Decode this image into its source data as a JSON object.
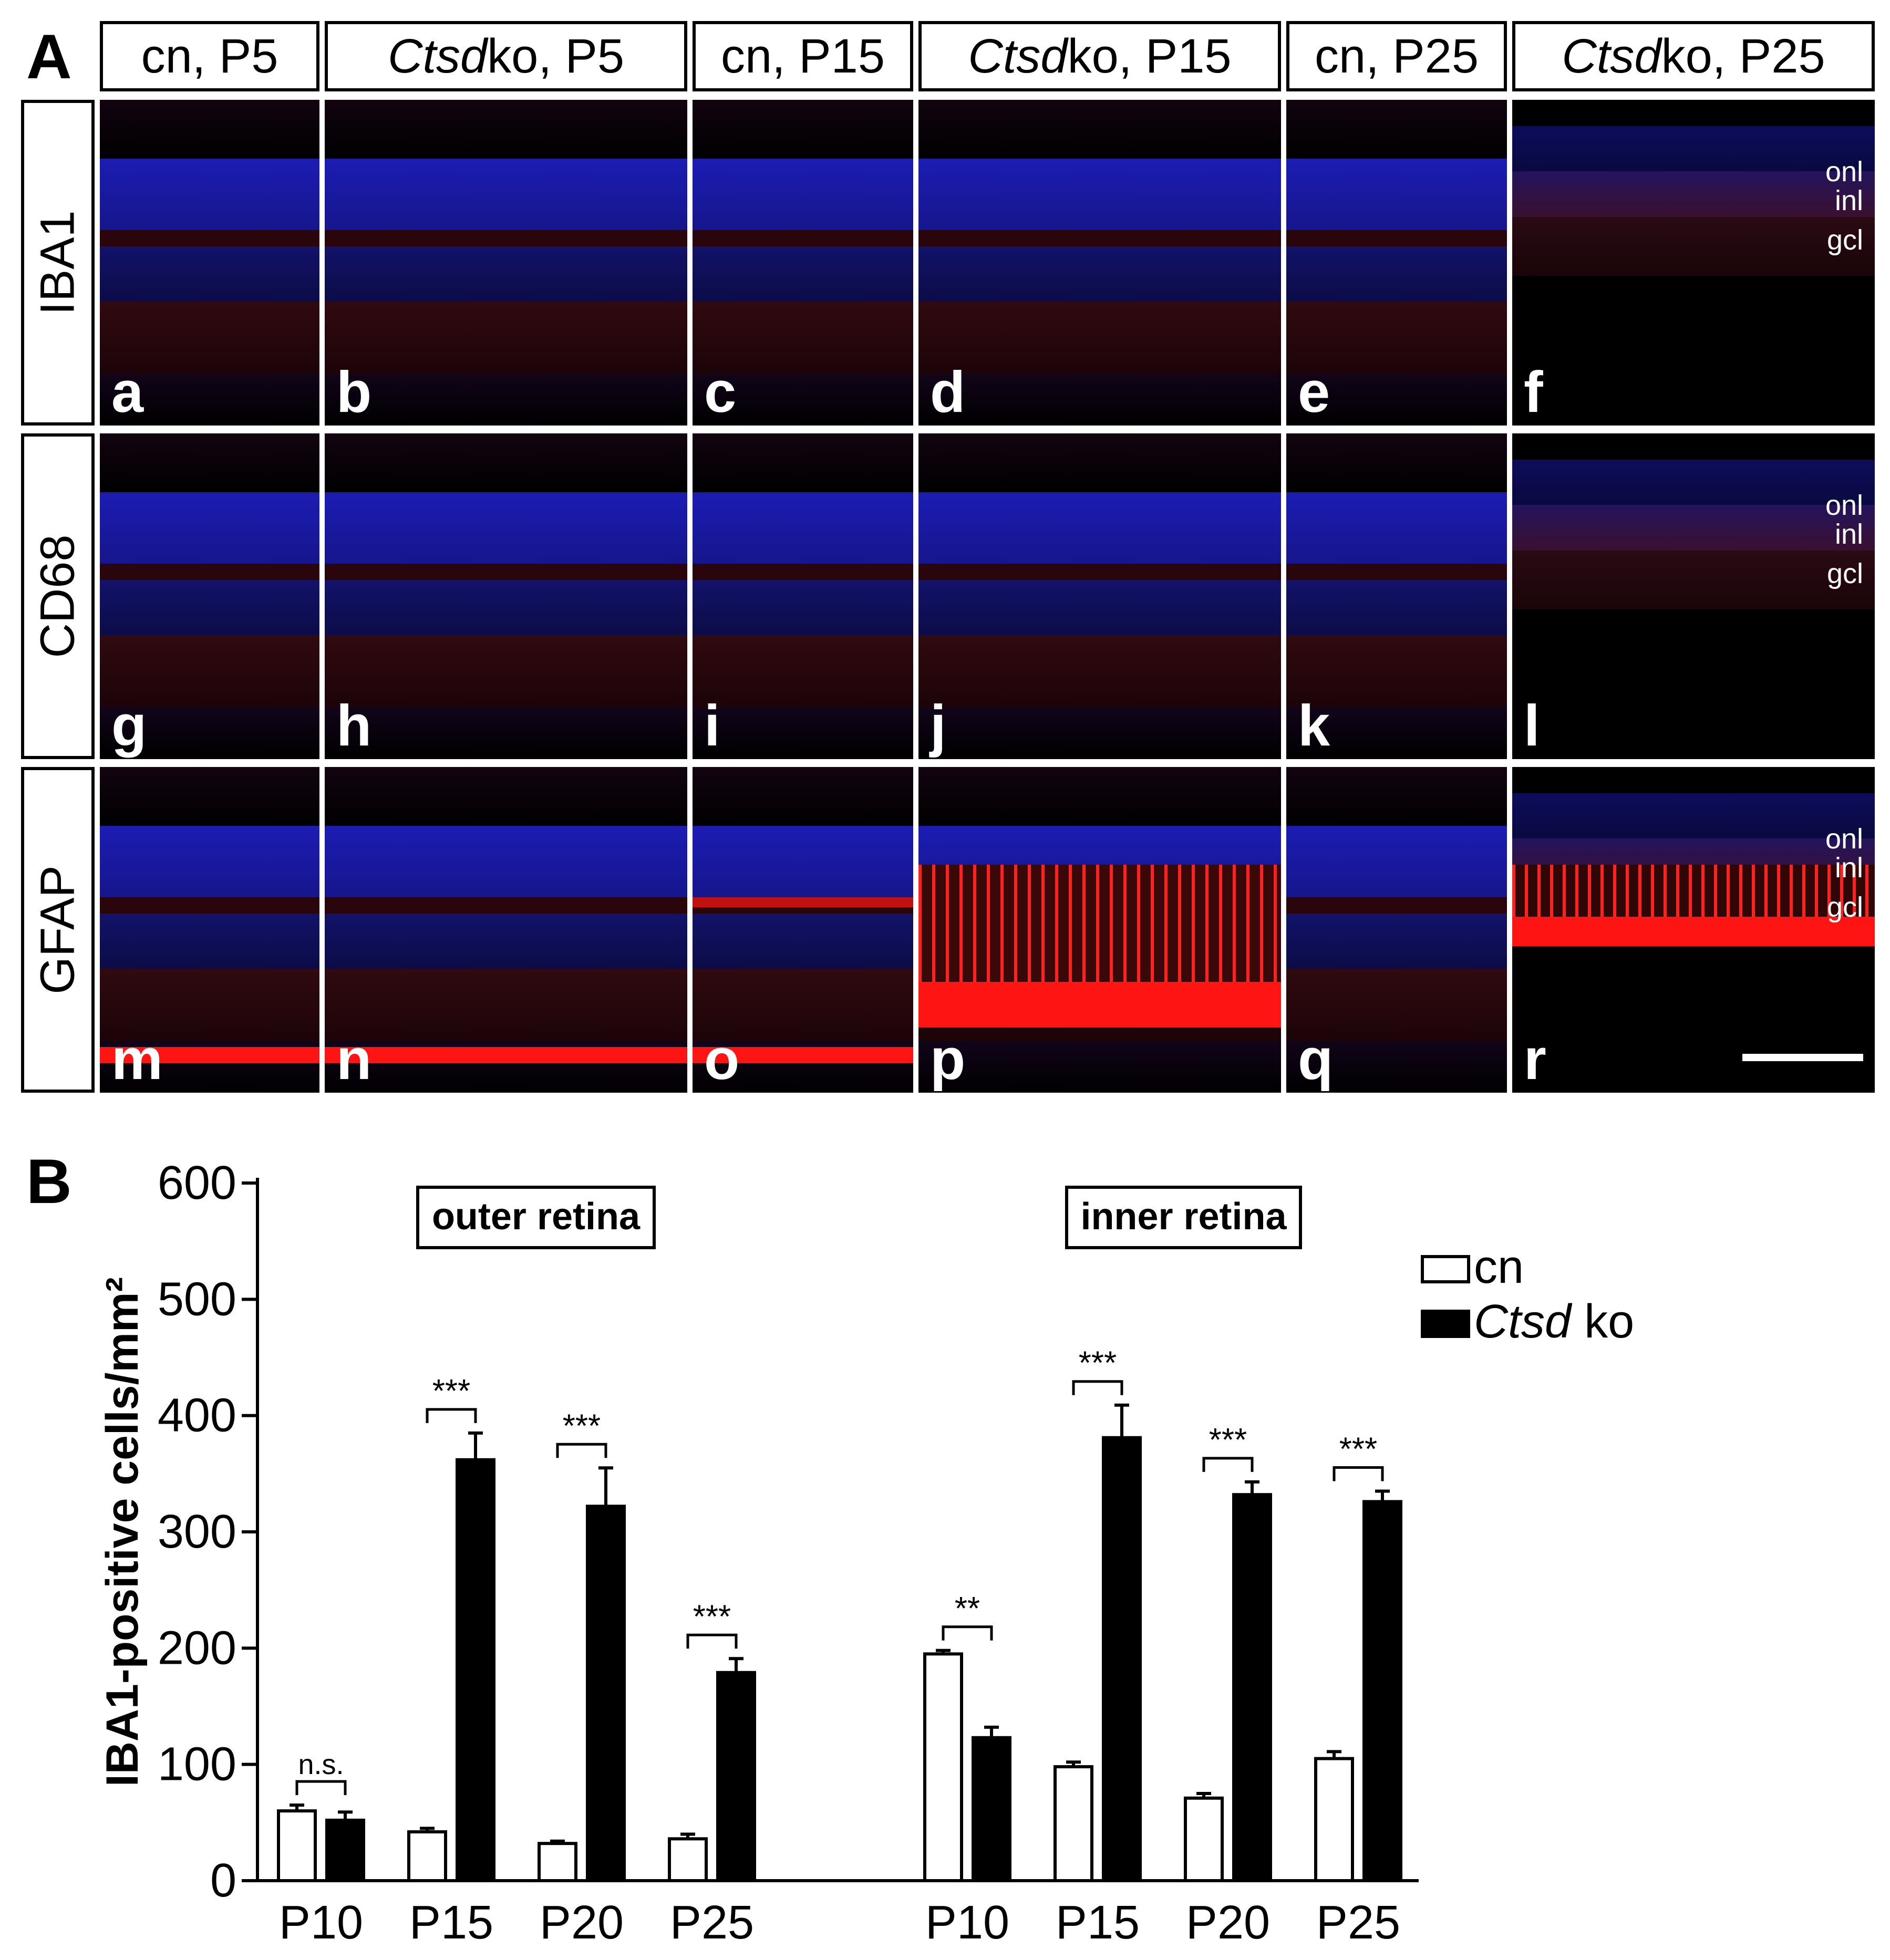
{
  "panel_a_label": "A",
  "panel_b_label": "B",
  "columns": [
    {
      "pre": "cn, P5",
      "ital": "",
      "post": ""
    },
    {
      "pre": "",
      "ital": "Ctsd",
      "post": " ko, P5"
    },
    {
      "pre": "cn, P15",
      "ital": "",
      "post": ""
    },
    {
      "pre": "",
      "ital": "Ctsd",
      "post": " ko, P15"
    },
    {
      "pre": "cn, P25",
      "ital": "",
      "post": ""
    },
    {
      "pre": "",
      "ital": "Ctsd",
      "post": " ko, P25"
    }
  ],
  "rows": [
    {
      "label": "IBA1",
      "letters": [
        "a",
        "b",
        "c",
        "d",
        "e",
        "f"
      ]
    },
    {
      "label": "CD68",
      "letters": [
        "g",
        "h",
        "i",
        "j",
        "k",
        "l"
      ]
    },
    {
      "label": "GFAP",
      "letters": [
        "m",
        "n",
        "o",
        "p",
        "q",
        "r"
      ]
    }
  ],
  "layer_labels": [
    "onl",
    "inl",
    "gcl"
  ],
  "colors": {
    "nuclear_stain": "#1c1cb4",
    "marker_stain": "#ff1414",
    "background": "#000000"
  },
  "chart_data": {
    "type": "bar",
    "ylabel": "IBA1-positive cells/mm²",
    "ylim": [
      0,
      600
    ],
    "yticks": [
      0,
      100,
      200,
      300,
      400,
      500,
      600
    ],
    "series": [
      {
        "name": "cn",
        "fill": "#ffffff"
      },
      {
        "name": "Ctsd ko",
        "fill": "#000000"
      }
    ],
    "legend_suffix": " ko",
    "legend_italic": "Ctsd",
    "legend_placement": "top-right",
    "groups": [
      {
        "title": "outer retina",
        "categories": [
          "P10",
          "P15",
          "P20",
          "P25"
        ],
        "cn": {
          "values": [
            60,
            42,
            32,
            36
          ],
          "err": [
            5,
            3,
            2,
            4
          ]
        },
        "ko": {
          "values": [
            52,
            362,
            322,
            179
          ],
          "err": [
            7,
            23,
            33,
            12
          ]
        },
        "sig": [
          "n.s.",
          "***",
          "***",
          "***"
        ]
      },
      {
        "title": "inner retina",
        "categories": [
          "P10",
          "P15",
          "P20",
          "P25"
        ],
        "cn": {
          "values": [
            195,
            98,
            71,
            105
          ],
          "err": [
            3,
            4,
            4,
            6
          ]
        },
        "ko": {
          "values": [
            123,
            381,
            332,
            326
          ],
          "err": [
            9,
            28,
            11,
            9
          ]
        },
        "sig": [
          "**",
          "***",
          "***",
          "***"
        ]
      }
    ]
  }
}
